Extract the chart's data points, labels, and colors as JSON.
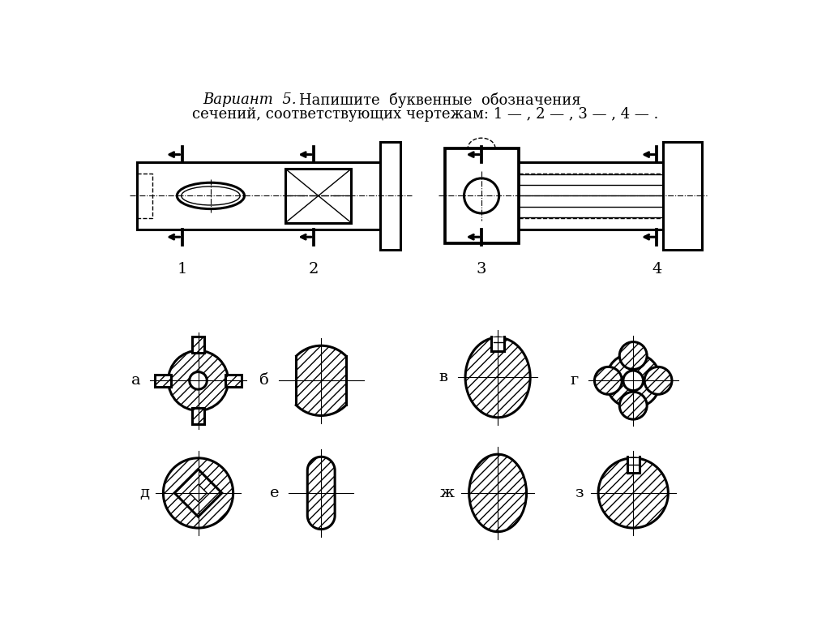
{
  "bg_color": "#ffffff",
  "line_color": "#000000",
  "title_italic": "Вариант  5.",
  "title_rest": "Напишите  буквенные  обозначения",
  "title_line2": "сечений, соответствующих чертежам: 1 — , 2 — , 3 — , 4 — .",
  "labels_row1": [
    "а",
    "б",
    "в",
    "г"
  ],
  "labels_row2": [
    "д",
    "е",
    "ж",
    "з"
  ],
  "numbers": [
    "1",
    "2",
    "3",
    "4"
  ],
  "lw_main": 2.2,
  "lw_thin": 1.0,
  "lw_ch": 0.8
}
